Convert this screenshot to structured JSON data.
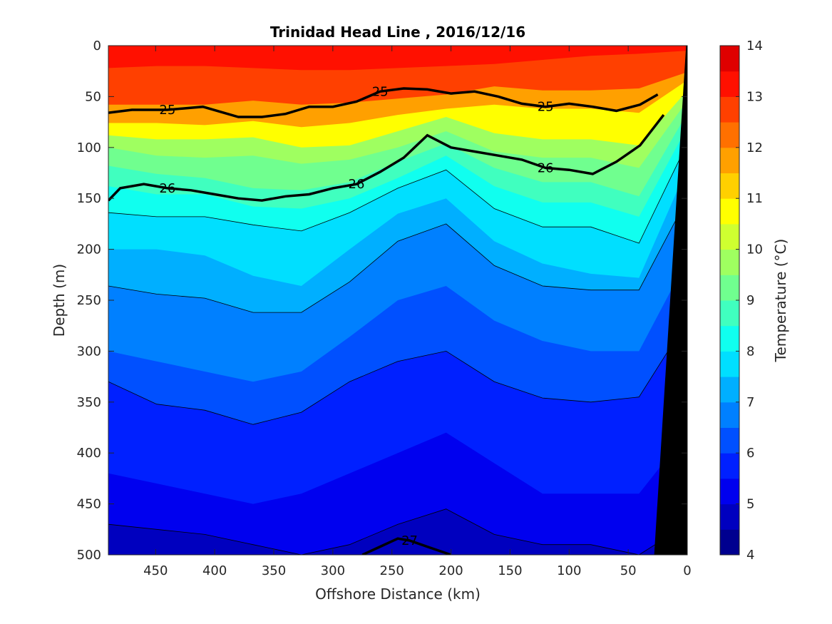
{
  "chart_data": {
    "type": "heatmap",
    "subtype": "filled-contour section",
    "title": "Trinidad Head Line , 2016/12/16",
    "xlabel": "Offshore Distance (km)",
    "ylabel": "Depth (m)",
    "xlim": [
      490,
      0
    ],
    "x_reversed": true,
    "ylim": [
      0,
      500
    ],
    "y_reversed": true,
    "x_ticks": [
      450,
      400,
      350,
      300,
      250,
      200,
      150,
      100,
      50,
      0
    ],
    "y_ticks": [
      0,
      50,
      100,
      150,
      200,
      250,
      300,
      350,
      400,
      450,
      500
    ],
    "colorbar": {
      "label": "Temperature (°C)",
      "range": [
        4,
        14
      ],
      "step": 0.5,
      "ticks": [
        4,
        5,
        6,
        7,
        8,
        9,
        10,
        11,
        12,
        13,
        14
      ],
      "colors": [
        "#00008f",
        "#0000bf",
        "#0000ef",
        "#0020ff",
        "#0050ff",
        "#0080ff",
        "#00afff",
        "#00dfff",
        "#10ffef",
        "#40ffbf",
        "#70ff8f",
        "#9fff60",
        "#cfff30",
        "#ffff00",
        "#ffd000",
        "#ffa000",
        "#ff7000",
        "#ff4000",
        "#ff1000",
        "#df0000",
        "#af0000"
      ]
    },
    "isotherms": [
      {
        "temp": 13,
        "depth": [
          22,
          20,
          20,
          22,
          24,
          24,
          22,
          20,
          18,
          14,
          10,
          8,
          5
        ]
      },
      {
        "temp": 12,
        "depth": [
          58,
          58,
          58,
          54,
          58,
          56,
          52,
          48,
          40,
          44,
          44,
          42,
          26
        ]
      },
      {
        "temp": 11,
        "depth": [
          76,
          76,
          78,
          74,
          80,
          76,
          68,
          62,
          58,
          62,
          62,
          66,
          34
        ]
      },
      {
        "temp": 10,
        "depth": [
          88,
          92,
          92,
          90,
          100,
          98,
          84,
          70,
          86,
          92,
          92,
          98,
          44
        ]
      },
      {
        "temp": 9.5,
        "depth": [
          100,
          108,
          110,
          108,
          116,
          112,
          100,
          84,
          104,
          110,
          110,
          120,
          54
        ]
      },
      {
        "temp": 9,
        "depth": [
          118,
          126,
          130,
          140,
          142,
          134,
          114,
          96,
          120,
          134,
          134,
          148,
          66
        ]
      },
      {
        "temp": 8.5,
        "depth": [
          138,
          146,
          146,
          158,
          160,
          150,
          130,
          108,
          138,
          154,
          154,
          168,
          80
        ]
      },
      {
        "temp": 8,
        "depth": [
          164,
          168,
          168,
          176,
          182,
          164,
          140,
          122,
          160,
          178,
          178,
          194,
          96
        ]
      },
      {
        "temp": 7.5,
        "depth": [
          200,
          200,
          206,
          226,
          236,
          200,
          165,
          150,
          192,
          214,
          224,
          228,
          120
        ]
      },
      {
        "temp": 7,
        "depth": [
          236,
          244,
          248,
          262,
          262,
          232,
          192,
          175,
          216,
          236,
          240,
          240,
          150
        ]
      },
      {
        "temp": 6.5,
        "depth": [
          300,
          310,
          320,
          330,
          320,
          286,
          250,
          236,
          270,
          290,
          300,
          300,
          210
        ]
      },
      {
        "temp": 6,
        "depth": [
          330,
          352,
          358,
          372,
          360,
          330,
          310,
          300,
          330,
          346,
          350,
          345,
          270
        ]
      },
      {
        "temp": 5.5,
        "depth": [
          420,
          430,
          440,
          450,
          440,
          420,
          400,
          380,
          410,
          440,
          440,
          440,
          380
        ]
      },
      {
        "temp": 5,
        "depth": [
          470,
          475,
          480,
          490,
          500,
          490,
          470,
          455,
          480,
          490,
          490,
          500,
          470
        ]
      }
    ],
    "sigma_contours": [
      {
        "label": "25",
        "x": [
          490,
          470,
          440,
          410,
          380,
          360,
          340,
          320,
          300,
          280,
          260,
          240,
          220,
          200,
          180,
          160,
          140,
          120,
          100,
          80,
          60,
          40,
          25
        ],
        "depth": [
          66,
          63,
          63,
          60,
          70,
          70,
          67,
          60,
          60,
          55,
          45,
          42,
          43,
          47,
          45,
          50,
          57,
          60,
          57,
          60,
          64,
          58,
          48
        ]
      },
      {
        "label": "26",
        "x": [
          490,
          480,
          460,
          440,
          420,
          400,
          380,
          360,
          340,
          320,
          300,
          280,
          260,
          240,
          220,
          200,
          180,
          160,
          140,
          120,
          100,
          80,
          60,
          40,
          20
        ],
        "depth": [
          152,
          140,
          136,
          140,
          142,
          146,
          150,
          152,
          148,
          146,
          140,
          136,
          124,
          110,
          88,
          100,
          104,
          108,
          112,
          120,
          122,
          126,
          114,
          98,
          68
        ]
      },
      {
        "label": "27",
        "x": [
          275,
          260,
          245,
          235,
          220,
          200
        ],
        "depth": [
          500,
          492,
          484,
          486,
          492,
          500
        ]
      }
    ],
    "bathymetry_color": "#000000"
  }
}
